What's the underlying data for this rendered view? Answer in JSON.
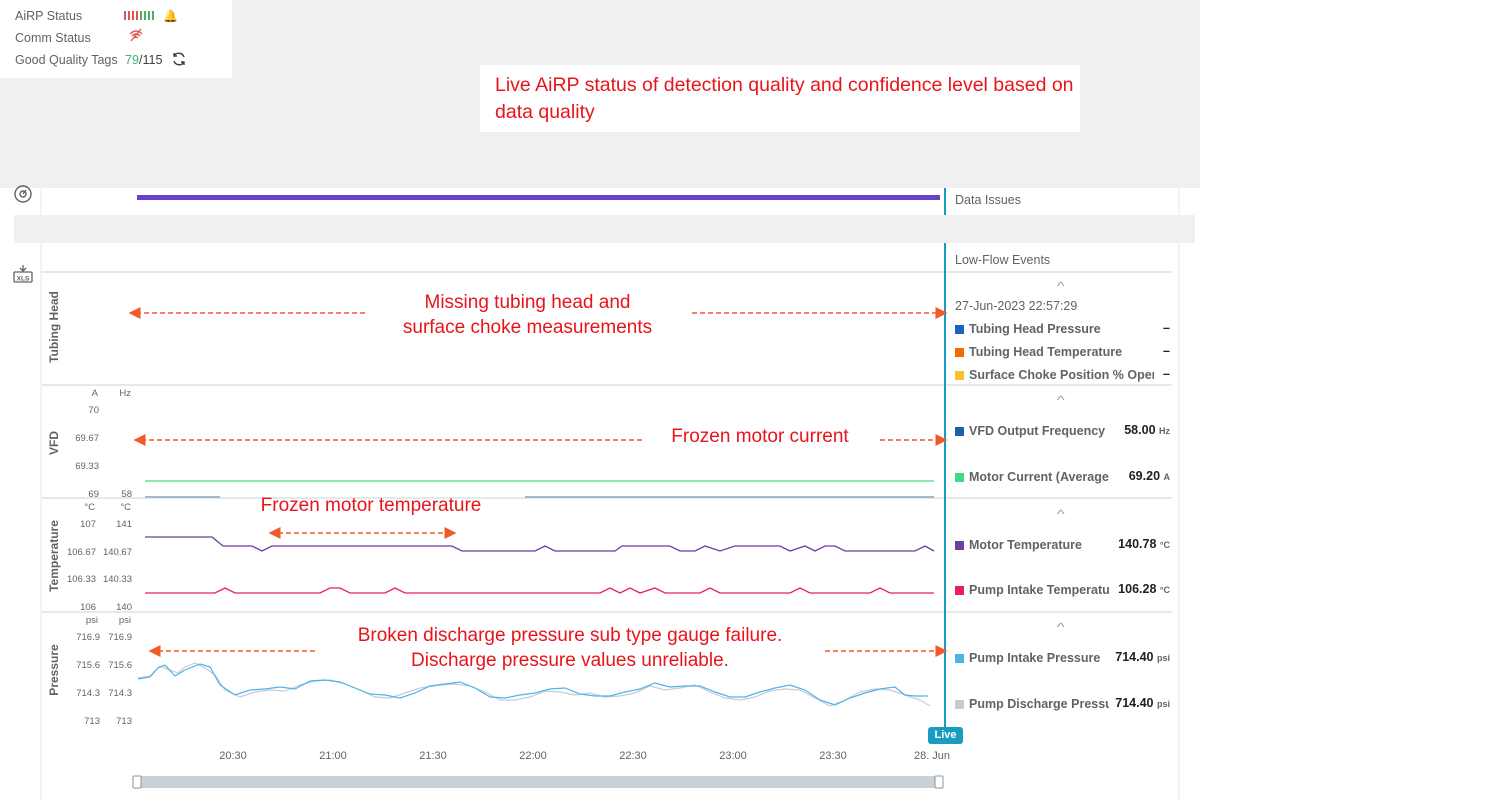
{
  "status_panel": {
    "airp_label": "AiRP Status",
    "comm_label": "Comm Status",
    "good_tags_label": "Good Quality Tags",
    "good_tags_count": "79",
    "good_tags_total": "/115",
    "airp_segments": [
      "#e05252",
      "#e05252",
      "#e05252",
      "#e05252",
      "#4caf6d",
      "#4caf6d",
      "#4caf6d",
      "#4caf6d"
    ]
  },
  "callout": {
    "text": "Live AiRP status of detection quality and confidence level based on data quality"
  },
  "annotations": {
    "tubing": [
      "Missing tubing head and",
      "surface choke measurements"
    ],
    "vfd": "Frozen motor current",
    "temperature": "Frozen motor temperature",
    "pressure": [
      "Broken discharge pressure sub type gauge failure.",
      "Discharge pressure values unreliable."
    ]
  },
  "side_events": {
    "data_issues": "Data Issues",
    "low_flow": "Low-Flow Events"
  },
  "timestamp": "27-Jun-2023 22:57:29",
  "sections": [
    {
      "title": "Tubing Head"
    },
    {
      "title": "VFD",
      "units": [
        "A",
        "Hz"
      ],
      "ticks_left": [
        "70",
        "69.67",
        "69.33",
        "69"
      ],
      "ticks_right": [
        "",
        "",
        "",
        "58"
      ]
    },
    {
      "title": "Temperature",
      "units": [
        "°C",
        "°C"
      ],
      "ticks_left": [
        "107",
        "106.67",
        "106.33",
        "106"
      ],
      "ticks_right": [
        "141",
        "140.67",
        "140.33",
        "140"
      ]
    },
    {
      "title": "Pressure",
      "units": [
        "psi",
        "psi"
      ],
      "ticks_left": [
        "716.9",
        "715.6",
        "714.3",
        "713"
      ],
      "ticks_right": [
        "716.9",
        "715.6",
        "714.3",
        "713"
      ]
    }
  ],
  "legend": {
    "tubing": [
      {
        "name": "Tubing Head Pressure",
        "color": "#1565c0",
        "value": "–",
        "unit": ""
      },
      {
        "name": "Tubing Head Temperature",
        "color": "#ef6c00",
        "value": "–",
        "unit": ""
      },
      {
        "name": "Surface Choke Position % Open",
        "color": "#fbc02d",
        "value": "–",
        "unit": ""
      }
    ],
    "vfd": [
      {
        "name": "VFD Output Frequency",
        "color": "#1e5fa8",
        "value": "58.00",
        "unit": "Hz"
      },
      {
        "name": "Motor Current (Average)",
        "color": "#3ddc84",
        "value": "69.20",
        "unit": "A"
      }
    ],
    "temperature": [
      {
        "name": "Motor Temperature",
        "color": "#6a3fa0",
        "value": "140.78",
        "unit": "°C"
      },
      {
        "name": "Pump Intake Temperature",
        "color": "#e91e63",
        "value": "106.28",
        "unit": "°C"
      }
    ],
    "pressure": [
      {
        "name": "Pump Intake Pressure",
        "color": "#4fb3e8",
        "value": "714.40",
        "unit": "psi"
      },
      {
        "name": "Pump Discharge Pressure",
        "color": "#c5ccd3",
        "value": "714.40",
        "unit": "psi"
      }
    ]
  },
  "x_ticks": [
    "20:30",
    "21:00",
    "21:30",
    "22:00",
    "22:30",
    "23:00",
    "23:30",
    "28. Jun"
  ],
  "live_label": "Live",
  "icons": [
    "airp-status-icon",
    "comm-status-icon",
    "refresh-icon",
    "gauge-icon",
    "xls-export-icon",
    "expand-caret-icon"
  ],
  "colors": {
    "annotation": "#e8141a",
    "live": "#1a9bc2",
    "good_count": "#3cb371",
    "event_bar": "#6a3fc9"
  }
}
